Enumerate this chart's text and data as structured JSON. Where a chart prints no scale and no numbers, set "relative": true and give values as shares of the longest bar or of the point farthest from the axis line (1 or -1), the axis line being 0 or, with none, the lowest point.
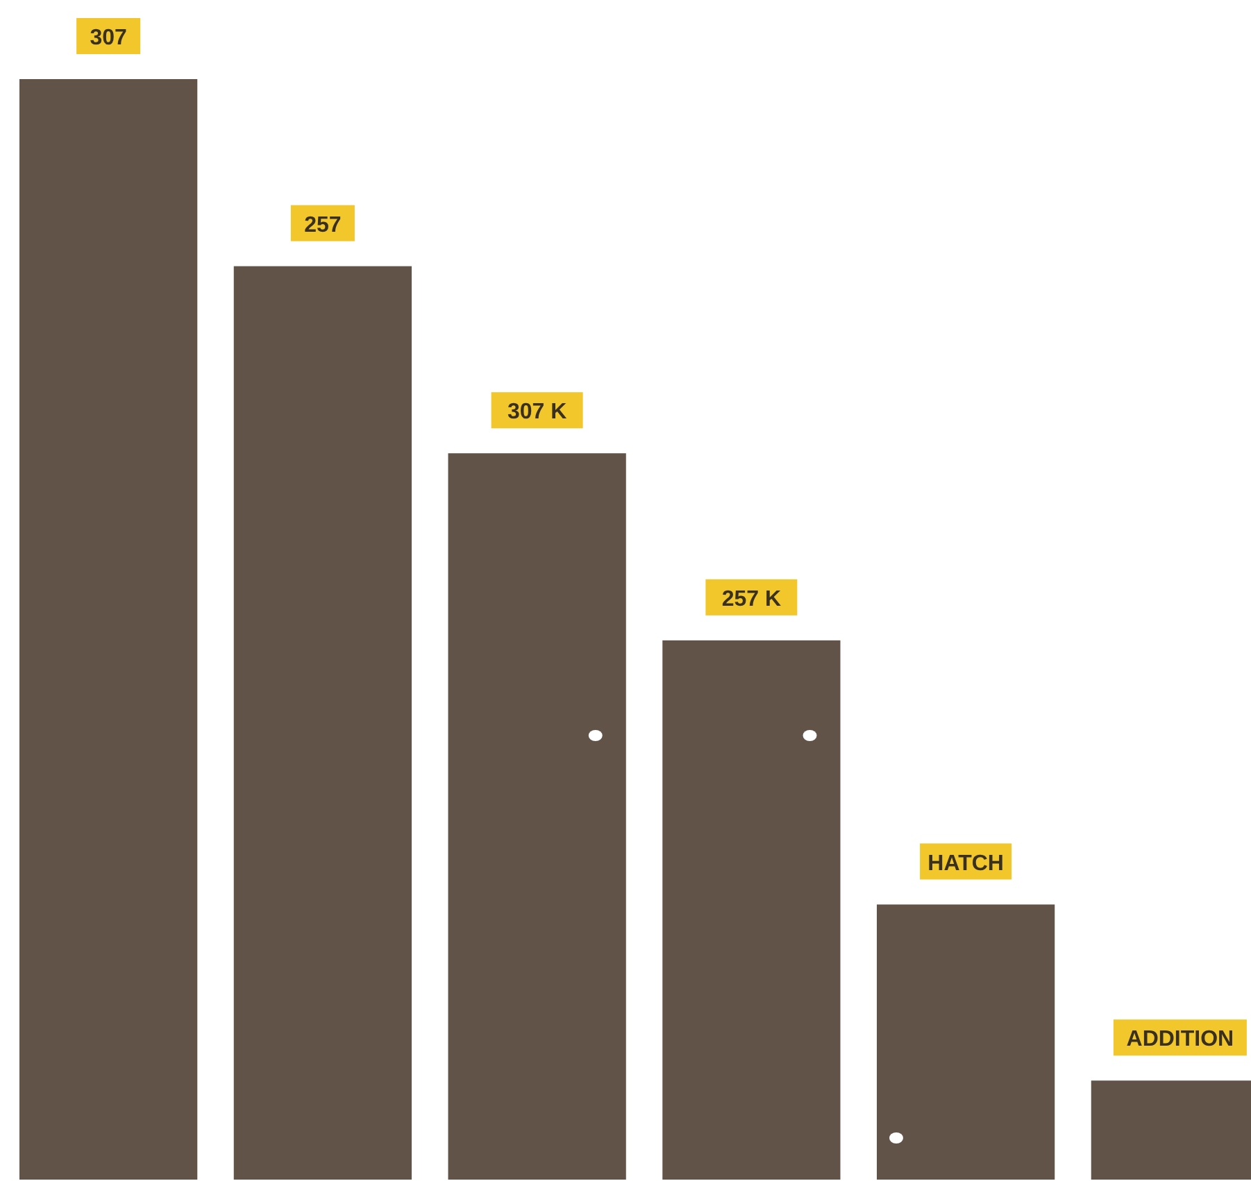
{
  "chart_data": {
    "type": "bar",
    "relative": true,
    "categories": [
      "307",
      "257",
      "307 K",
      "257 K",
      "HATCH",
      "ADDITION"
    ],
    "values": [
      1,
      0.83,
      0.66,
      0.49,
      0.25,
      0.09
    ],
    "color": "#625349"
  }
}
